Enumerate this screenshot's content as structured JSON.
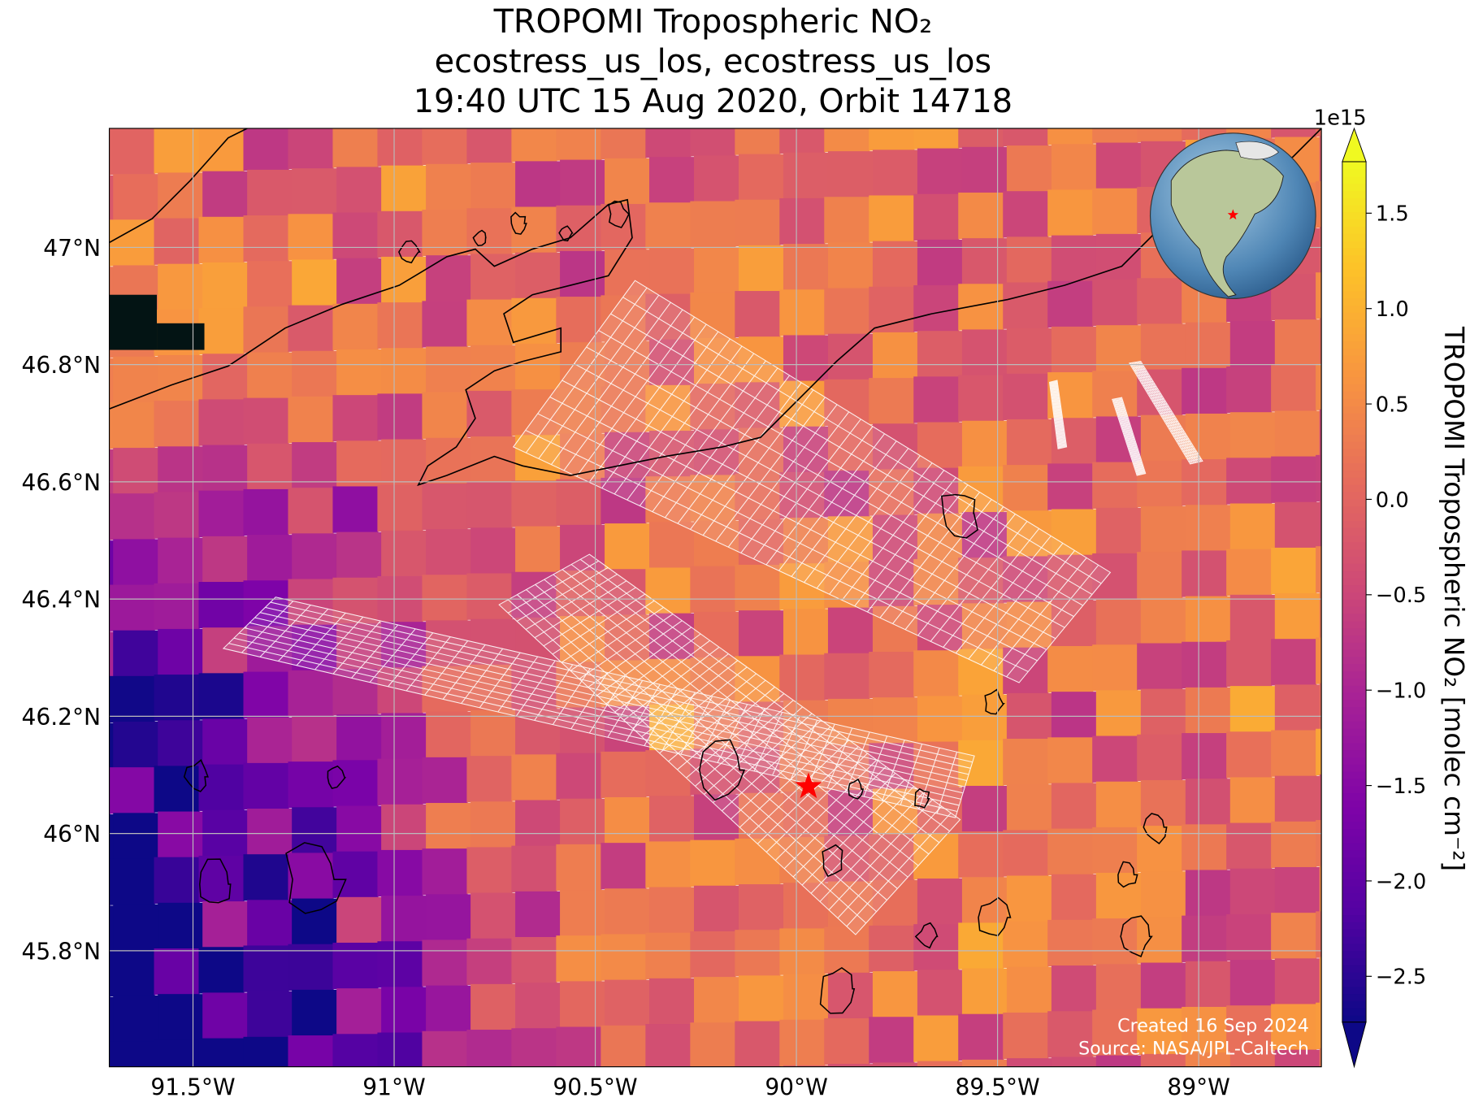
{
  "chart_data": {
    "type": "map",
    "title": "TROPOMI Tropospheric NO₂",
    "subtitle": [
      "ecostress_us_los, ecostress_us_los",
      "19:40 UTC 15 Aug 2020, Orbit 14718"
    ],
    "xlim": [
      -91.708,
      -88.695
    ],
    "xticks": [
      {
        "value": -91.5,
        "label": "91.5°W"
      },
      {
        "value": -91,
        "label": "91°W"
      },
      {
        "value": -90.5,
        "label": "90.5°W"
      },
      {
        "value": -90,
        "label": "90°W"
      },
      {
        "value": -89.5,
        "label": "89.5°W"
      },
      {
        "value": -89,
        "label": "89°W"
      }
    ],
    "ylim": [
      45.602,
      47.203
    ],
    "yticks": [
      {
        "value": 45.8,
        "label": "45.8°N"
      },
      {
        "value": 46,
        "label": "46°N"
      },
      {
        "value": 46.2,
        "label": "46.2°N"
      },
      {
        "value": 46.4,
        "label": "46.4°N"
      },
      {
        "value": 46.6,
        "label": "46.6°N"
      },
      {
        "value": 46.8,
        "label": "46.8°N"
      },
      {
        "value": 47,
        "label": "47°N"
      }
    ],
    "grid": true,
    "colorbar": {
      "label": "TROPOMI Tropospheric NO₂ [molec cm⁻²]",
      "offset": "1e15",
      "colormap": "plasma",
      "clim": [
        -2.74,
        1.77
      ],
      "ticks": [
        {
          "value": -2.5,
          "label": "−2.5"
        },
        {
          "value": -2,
          "label": "−2.0"
        },
        {
          "value": -1.5,
          "label": "−1.5"
        },
        {
          "value": -1,
          "label": "−1.0"
        },
        {
          "value": -0.5,
          "label": "−0.5"
        },
        {
          "value": 0,
          "label": "0.0"
        },
        0.5,
        {
          "value": 1,
          "label": "1.0"
        },
        1.5
      ]
    },
    "target": {
      "lon": -89.97,
      "lat": 46.08,
      "color": "#ff0000"
    },
    "annotations": [
      "Created 16 Sep 2024",
      "Source: NASA/JPL-Caltech"
    ]
  }
}
